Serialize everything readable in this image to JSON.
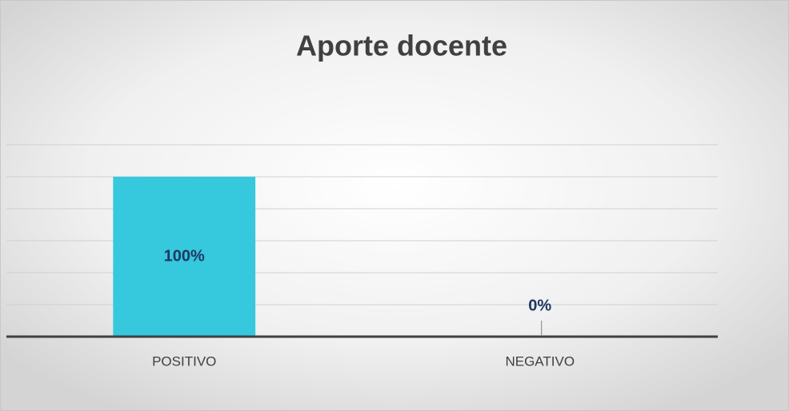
{
  "chart_data": {
    "type": "bar",
    "title": "Aporte docente",
    "categories": [
      "POSITIVO",
      "NEGATIVO"
    ],
    "values": [
      100,
      0
    ],
    "value_labels": [
      "100%",
      "0%"
    ],
    "color": "#36c8dc",
    "ylim": [
      0,
      120
    ],
    "yticks": [
      0,
      20,
      40,
      60,
      80,
      100,
      120
    ],
    "grid": true
  }
}
